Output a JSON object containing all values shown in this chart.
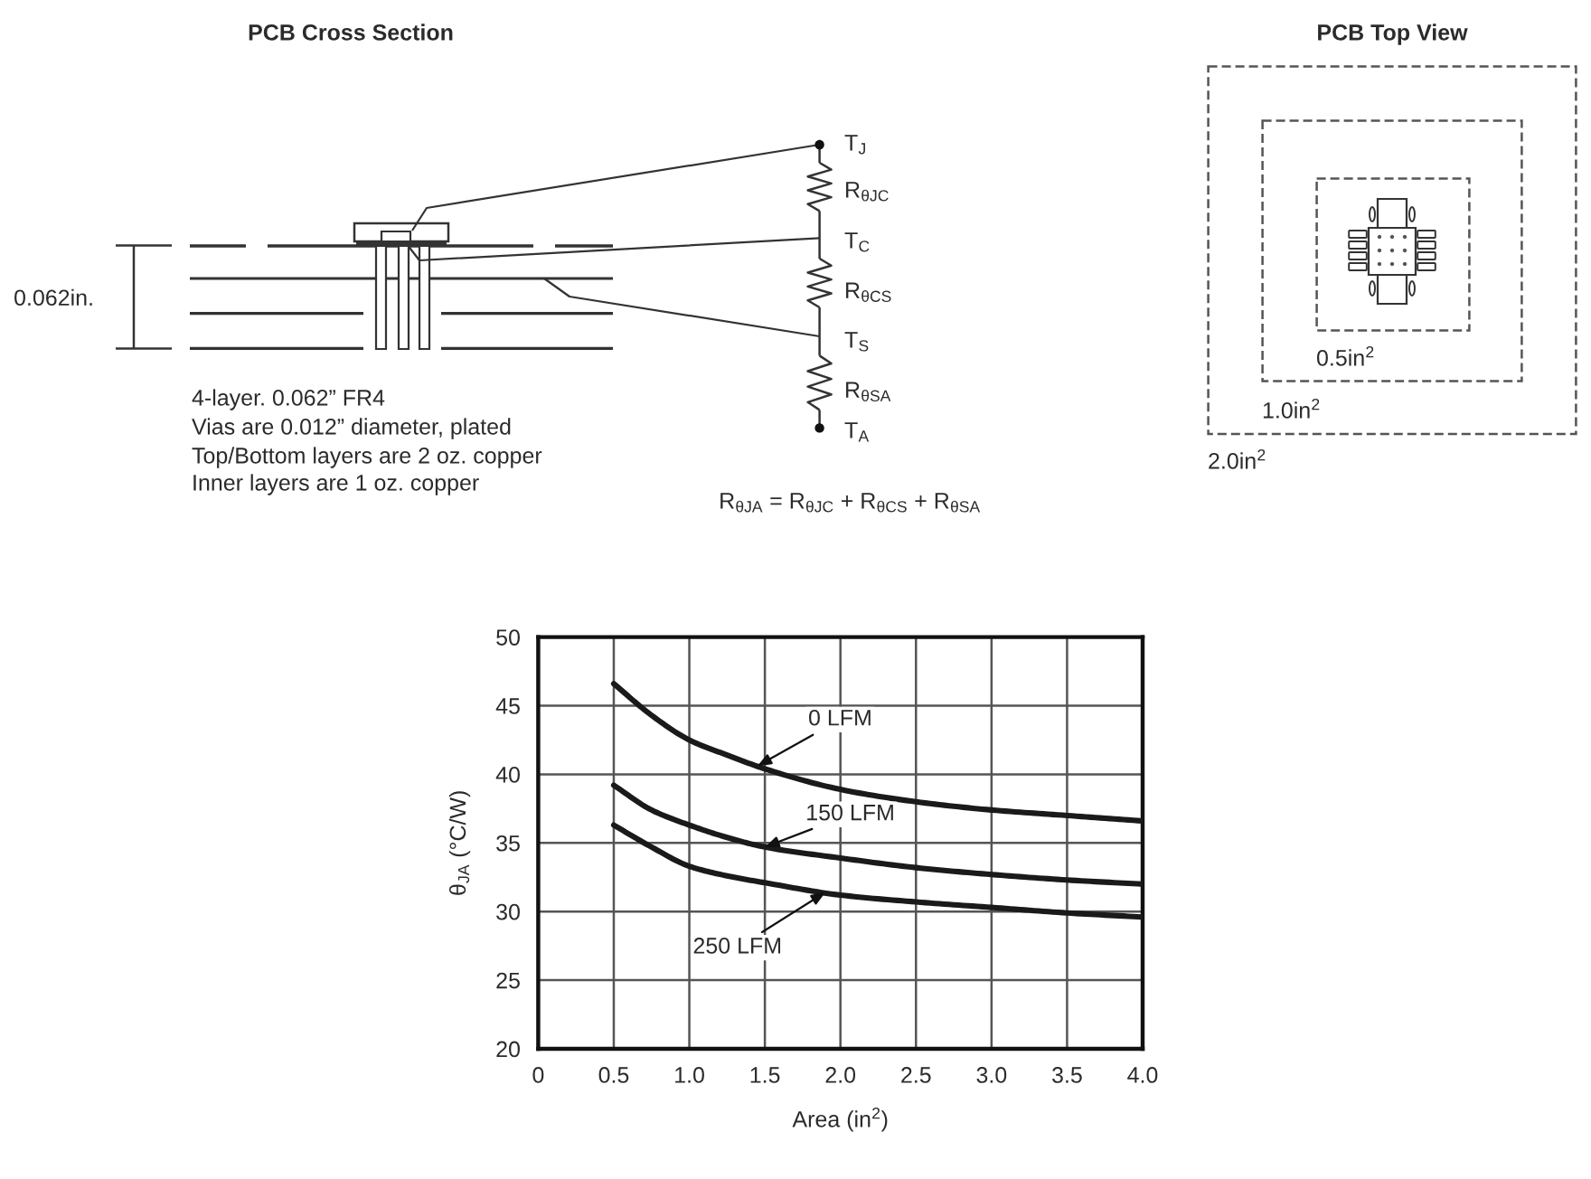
{
  "chart_data": {
    "type": "line",
    "xlabel": "Area (in$^{2}$)",
    "ylabel": "θ$_{JA}$ (°C/W)",
    "x": [
      0.5,
      0.75,
      1,
      1.25,
      1.5,
      2,
      2.5,
      3,
      3.5,
      4
    ],
    "series": [
      {
        "color": "#1a1a1a",
        "values": [
          46.6,
          44.3,
          42.5,
          41.4,
          40.4,
          38.9,
          38.0,
          37.4,
          37.0,
          36.6
        ]
      },
      {
        "color": "#1a1a1a",
        "values": [
          39.2,
          37.4,
          36.3,
          35.4,
          34.7,
          33.9,
          33.2,
          32.7,
          32.3,
          32.0
        ]
      },
      {
        "color": "#1a1a1a",
        "values": [
          36.3,
          34.7,
          33.3,
          32.6,
          32.1,
          31.2,
          30.7,
          30.3,
          29.9,
          29.6
        ]
      }
    ],
    "xlim": [
      0,
      4
    ],
    "ylim": [
      20,
      50
    ],
    "xticks": [
      0,
      0.5,
      {
        "value": 1,
        "label": "1.0"
      },
      1.5,
      {
        "value": 2,
        "label": "2.0"
      },
      2.5,
      {
        "value": 3,
        "label": "3.0"
      },
      3.5,
      {
        "value": 4,
        "label": "4.0"
      }
    ],
    "yticks": [
      20,
      25,
      30,
      35,
      40,
      45,
      50
    ],
    "grid": true,
    "line_style": "solid",
    "annotations": [
      "PCB Cross Section",
      "PCB Top View",
      "0.062in.",
      "4-layer. 0.062” FR4",
      "Vias are 0.012” diameter, plated",
      "Top/Bottom layers are 2 oz. copper",
      "Inner layers are 1 oz. copper",
      "T$_{J}$",
      "R$_{θJC}$",
      "T$_{C}$",
      "R$_{θCS}$",
      "T$_{S}$",
      "R$_{θSA}$",
      "T$_{A}$",
      "R$_{θJA}$ = R$_{θJC}$ + R$_{θCS}$ + R$_{θSA}$",
      "0.5in$^{2}$",
      "1.0in$^{2}$",
      "2.0in$^{2}$",
      {
        "text": "0 LFM",
        "x": 1.45,
        "y": 40.6
      },
      {
        "text": "150 LFM",
        "x": 1.5,
        "y": 34.7
      },
      {
        "text": "250 LFM",
        "x": 1.9,
        "y": 31.4
      }
    ]
  }
}
